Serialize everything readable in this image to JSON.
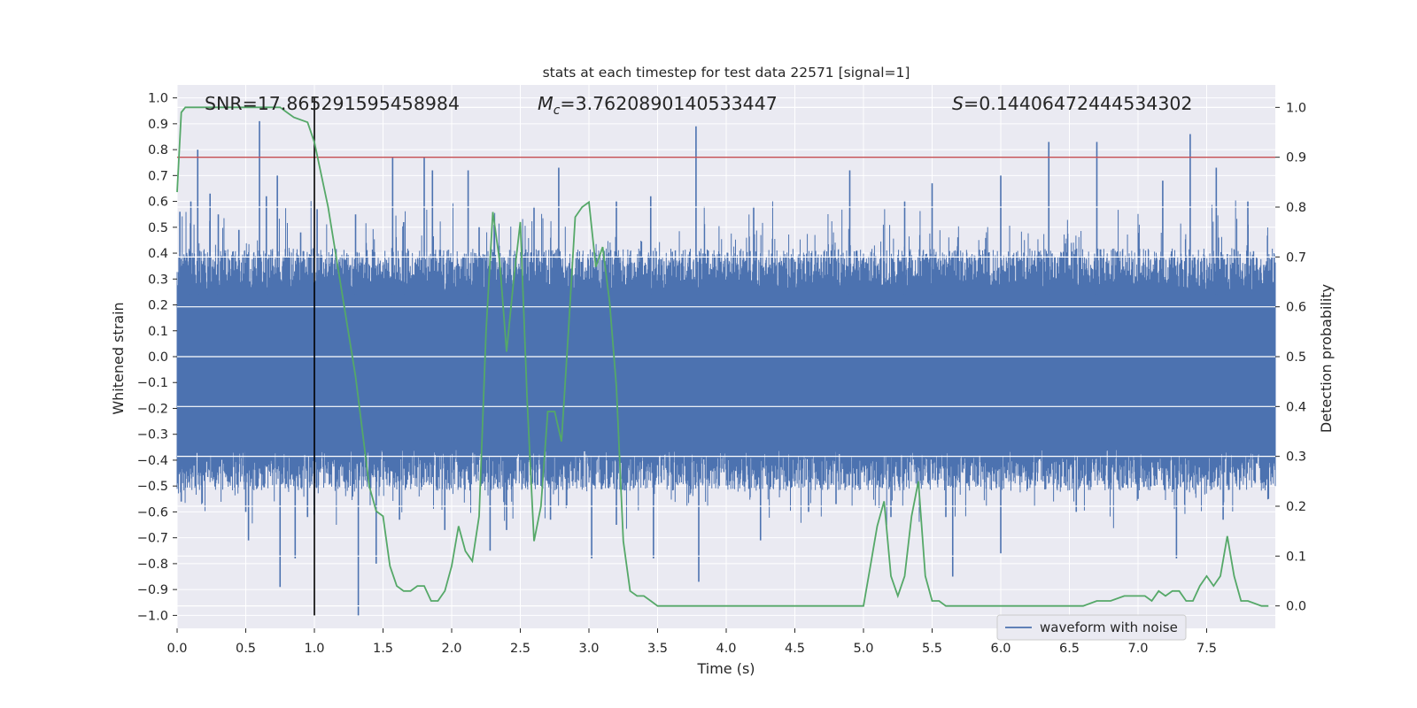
{
  "chart_data": {
    "type": "line",
    "title": "stats at each timestep for test data 22571 [signal=1]",
    "xlabel": "Time (s)",
    "ylabel_left": "Whitened strain",
    "ylabel_right": "Detection probability",
    "xlim": [
      0.0,
      8.0
    ],
    "ylim_left": [
      -1.05,
      1.05
    ],
    "ylim_right": [
      -0.045,
      1.045
    ],
    "x_ticks": [
      "0.0",
      "0.5",
      "1.0",
      "1.5",
      "2.0",
      "2.5",
      "3.0",
      "3.5",
      "4.0",
      "4.5",
      "5.0",
      "5.5",
      "6.0",
      "6.5",
      "7.0",
      "7.5"
    ],
    "y_left_ticks": [
      "1.0",
      "0.9",
      "0.8",
      "0.7",
      "0.6",
      "0.5",
      "0.4",
      "0.3",
      "0.2",
      "0.1",
      "0.0",
      "−0.1",
      "−0.2",
      "−0.3",
      "−0.4",
      "−0.5",
      "−0.6",
      "−0.7",
      "−0.8",
      "−0.9",
      "−1.0"
    ],
    "y_right_ticks": [
      "1.0",
      "0.9",
      "0.8",
      "0.7",
      "0.6",
      "0.5",
      "0.4",
      "0.3",
      "0.2",
      "0.1",
      "0.0"
    ],
    "grid": true,
    "annotations": {
      "snr": "SNR=17.865291595458984",
      "mc_symbol": "M",
      "mc_sub": "c",
      "mc_value": "=3.7620890140533447",
      "s_symbol": "S",
      "s_value": "=0.14406472444534302"
    },
    "threshold_line": {
      "axis": "right",
      "y": 0.9,
      "color": "#c44e52"
    },
    "marker_line": {
      "x": 1.0,
      "y_from": -1.0,
      "y_to": 1.0,
      "color": "#000000"
    },
    "legend": {
      "label": "waveform with noise",
      "position": "lower-right"
    },
    "series": [
      {
        "name": "waveform with noise",
        "axis": "left",
        "color": "#4c72b0",
        "style": "dense noise band",
        "typical_upper": 0.33,
        "typical_lower": -0.43,
        "spikes": [
          {
            "x": 0.02,
            "y": 0.56
          },
          {
            "x": 0.1,
            "y": 0.6
          },
          {
            "x": 0.15,
            "y": 0.8
          },
          {
            "x": 0.24,
            "y": 0.63
          },
          {
            "x": 0.3,
            "y": 0.55
          },
          {
            "x": 0.45,
            "y": 0.49
          },
          {
            "x": 0.6,
            "y": 0.91
          },
          {
            "x": 0.65,
            "y": 0.62
          },
          {
            "x": 0.73,
            "y": 0.7
          },
          {
            "x": 0.9,
            "y": 0.48
          },
          {
            "x": 1.02,
            "y": 0.57
          },
          {
            "x": 1.3,
            "y": 0.55
          },
          {
            "x": 1.57,
            "y": 0.77
          },
          {
            "x": 1.65,
            "y": 0.52
          },
          {
            "x": 1.8,
            "y": 0.77
          },
          {
            "x": 1.86,
            "y": 0.72
          },
          {
            "x": 2.12,
            "y": 0.72
          },
          {
            "x": 2.2,
            "y": 0.5
          },
          {
            "x": 2.6,
            "y": 0.58
          },
          {
            "x": 2.78,
            "y": 0.73
          },
          {
            "x": 3.2,
            "y": 0.6
          },
          {
            "x": 3.45,
            "y": 0.62
          },
          {
            "x": 3.78,
            "y": 0.89
          },
          {
            "x": 4.2,
            "y": 0.58
          },
          {
            "x": 4.9,
            "y": 0.72
          },
          {
            "x": 5.3,
            "y": 0.6
          },
          {
            "x": 5.5,
            "y": 0.67
          },
          {
            "x": 6.0,
            "y": 0.7
          },
          {
            "x": 6.35,
            "y": 0.83
          },
          {
            "x": 6.7,
            "y": 0.83
          },
          {
            "x": 7.18,
            "y": 0.68
          },
          {
            "x": 7.38,
            "y": 0.86
          },
          {
            "x": 7.57,
            "y": 0.73
          },
          {
            "x": 7.8,
            "y": 0.6
          },
          {
            "x": 0.03,
            "y": -0.56
          },
          {
            "x": 0.5,
            "y": -0.6
          },
          {
            "x": 0.52,
            "y": -0.71
          },
          {
            "x": 0.75,
            "y": -0.89
          },
          {
            "x": 0.86,
            "y": -0.78
          },
          {
            "x": 0.95,
            "y": -0.62
          },
          {
            "x": 1.32,
            "y": -1.0
          },
          {
            "x": 1.45,
            "y": -0.8
          },
          {
            "x": 1.62,
            "y": -0.63
          },
          {
            "x": 1.95,
            "y": -0.67
          },
          {
            "x": 2.28,
            "y": -0.75
          },
          {
            "x": 2.4,
            "y": -0.67
          },
          {
            "x": 2.72,
            "y": -0.63
          },
          {
            "x": 3.02,
            "y": -0.78
          },
          {
            "x": 3.2,
            "y": -0.65
          },
          {
            "x": 3.47,
            "y": -0.78
          },
          {
            "x": 3.8,
            "y": -0.87
          },
          {
            "x": 4.25,
            "y": -0.71
          },
          {
            "x": 4.6,
            "y": -0.6
          },
          {
            "x": 4.8,
            "y": -0.57
          },
          {
            "x": 5.2,
            "y": -0.62
          },
          {
            "x": 5.6,
            "y": -0.62
          },
          {
            "x": 5.65,
            "y": -0.85
          },
          {
            "x": 6.0,
            "y": -0.76
          },
          {
            "x": 6.55,
            "y": -0.6
          },
          {
            "x": 7.0,
            "y": -0.55
          },
          {
            "x": 7.28,
            "y": -0.78
          },
          {
            "x": 7.62,
            "y": -0.63
          },
          {
            "x": 7.95,
            "y": -0.55
          }
        ]
      },
      {
        "name": "detection probability",
        "axis": "right",
        "color": "#55a868",
        "x": [
          0.0,
          0.03,
          0.06,
          0.12,
          0.3,
          0.5,
          0.6,
          0.75,
          0.8,
          0.85,
          0.95,
          1.0,
          1.1,
          1.2,
          1.3,
          1.4,
          1.45,
          1.5,
          1.55,
          1.6,
          1.65,
          1.7,
          1.75,
          1.8,
          1.85,
          1.9,
          1.95,
          2.0,
          2.05,
          2.1,
          2.15,
          2.2,
          2.25,
          2.3,
          2.35,
          2.4,
          2.45,
          2.5,
          2.55,
          2.6,
          2.65,
          2.7,
          2.75,
          2.8,
          2.85,
          2.9,
          2.95,
          3.0,
          3.05,
          3.1,
          3.15,
          3.2,
          3.25,
          3.3,
          3.35,
          3.4,
          3.45,
          3.5,
          3.55,
          3.6,
          3.7,
          3.8,
          4.0,
          4.5,
          4.6,
          4.7,
          4.8,
          5.0,
          5.05,
          5.1,
          5.15,
          5.2,
          5.25,
          5.3,
          5.35,
          5.4,
          5.45,
          5.5,
          5.55,
          5.6,
          5.7,
          5.8,
          6.0,
          6.45,
          6.5,
          6.6,
          6.7,
          6.75,
          6.8,
          6.9,
          7.0,
          7.05,
          7.1,
          7.15,
          7.2,
          7.25,
          7.3,
          7.35,
          7.4,
          7.45,
          7.5,
          7.55,
          7.6,
          7.65,
          7.7,
          7.75,
          7.8,
          7.9,
          7.95
        ],
        "y": [
          0.83,
          0.99,
          1.0,
          1.0,
          1.0,
          1.0,
          1.0,
          1.0,
          0.99,
          0.98,
          0.97,
          0.93,
          0.8,
          0.63,
          0.46,
          0.24,
          0.19,
          0.18,
          0.08,
          0.04,
          0.03,
          0.03,
          0.04,
          0.04,
          0.01,
          0.01,
          0.03,
          0.08,
          0.16,
          0.11,
          0.09,
          0.18,
          0.55,
          0.79,
          0.69,
          0.51,
          0.65,
          0.77,
          0.41,
          0.13,
          0.2,
          0.39,
          0.39,
          0.33,
          0.55,
          0.78,
          0.8,
          0.81,
          0.68,
          0.72,
          0.61,
          0.44,
          0.13,
          0.03,
          0.02,
          0.02,
          0.01,
          0.0,
          0.0,
          0.0,
          0.0,
          0.0,
          0.0,
          0.0,
          0.0,
          0.0,
          0.0,
          0.0,
          0.08,
          0.16,
          0.21,
          0.06,
          0.02,
          0.06,
          0.18,
          0.25,
          0.06,
          0.01,
          0.01,
          0.0,
          0.0,
          0.0,
          0.0,
          0.0,
          0.0,
          0.0,
          0.01,
          0.01,
          0.01,
          0.02,
          0.02,
          0.02,
          0.01,
          0.03,
          0.02,
          0.03,
          0.03,
          0.01,
          0.01,
          0.04,
          0.06,
          0.04,
          0.06,
          0.14,
          0.06,
          0.01,
          0.01,
          0.0,
          0.0
        ]
      }
    ]
  }
}
